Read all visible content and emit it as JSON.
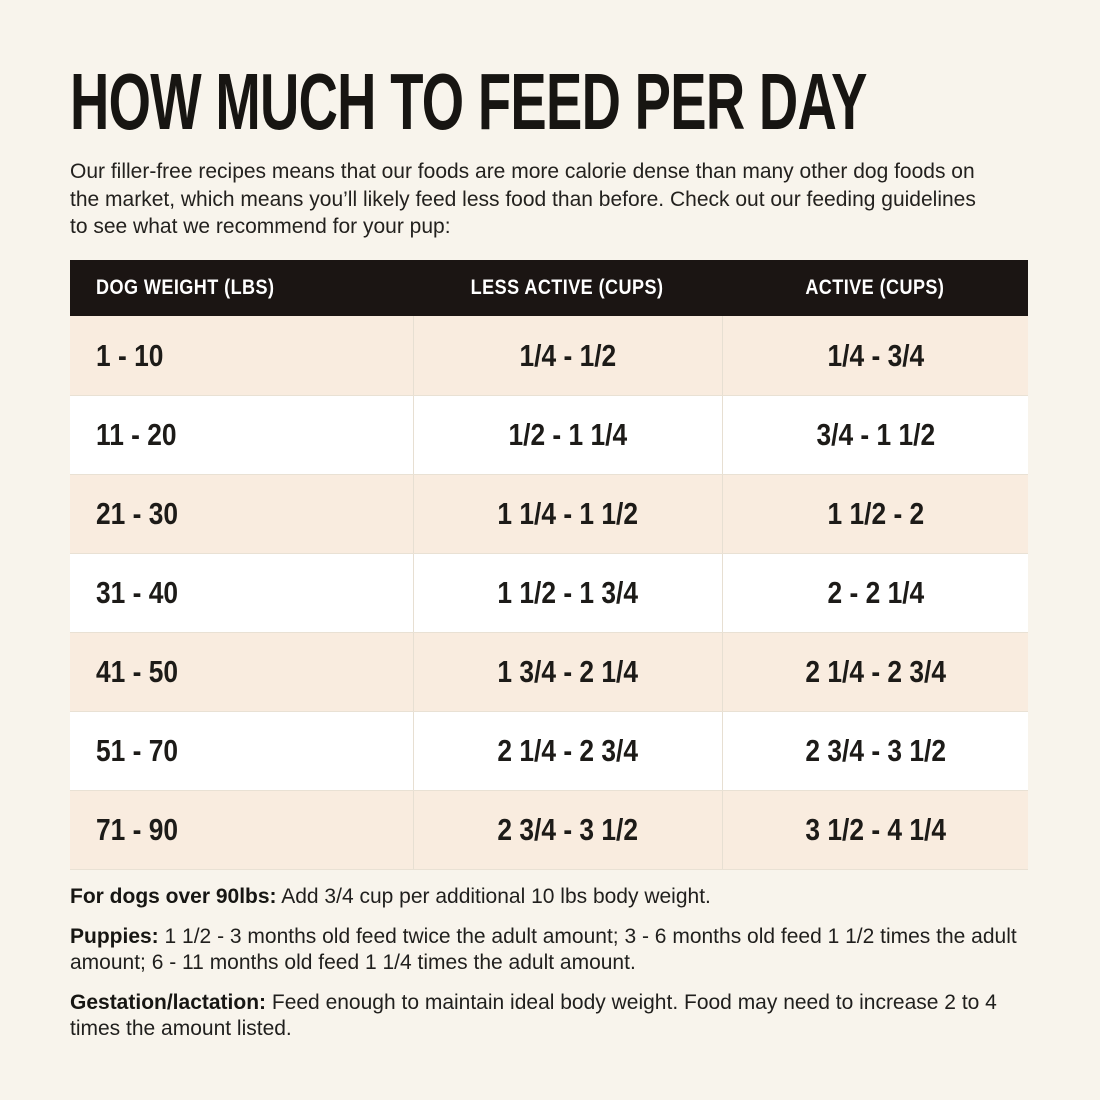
{
  "page": {
    "title": "HOW MUCH TO FEED PER DAY",
    "intro": "Our filler-free recipes means that our foods are more calorie dense than many other dog foods on the market, which means you’ll likely feed less food than before. Check out our feeding guidelines to see what we recommend for your pup:"
  },
  "chart_data": {
    "type": "table",
    "title": "HOW MUCH TO FEED PER DAY",
    "columns": [
      "DOG WEIGHT (LBS)",
      "LESS ACTIVE (CUPS)",
      "ACTIVE (CUPS)"
    ],
    "rows": [
      [
        "1 - 10",
        "1/4 - 1/2",
        "1/4 - 3/4"
      ],
      [
        "11 - 20",
        "1/2 - 1 1/4",
        "3/4 - 1 1/2"
      ],
      [
        "21 - 30",
        "1 1/4 - 1 1/2",
        "1 1/2 - 2"
      ],
      [
        "31 - 40",
        "1 1/2 - 1 3/4",
        "2 - 2 1/4"
      ],
      [
        "41 - 50",
        "1 3/4 - 2 1/4",
        "2 1/4 - 2 3/4"
      ],
      [
        "51 - 70",
        "2 1/4 - 2 3/4",
        "2 3/4 - 3 1/2"
      ],
      [
        "71 - 90",
        "2 3/4 - 3 1/2",
        "3 1/2 - 4 1/4"
      ]
    ],
    "layout_hints": {
      "header_style": "black bar, white uppercase condensed text",
      "row_striping": "cream on odd rows, white on even rows",
      "first_column_align": "left",
      "other_columns_align": "center"
    }
  },
  "notes": [
    {
      "label": "For dogs over 90lbs:",
      "text": "Add 3/4 cup per additional 10 lbs body weight."
    },
    {
      "label": "Puppies:",
      "text": "1 1/2 - 3 months old feed twice the adult amount; 3 - 6 months old feed 1 1/2 times the adult amount; 6 - 11 months old feed 1 1/4 times the adult amount."
    },
    {
      "label": "Gestation/lactation:",
      "text": "Feed enough to maintain ideal body weight. Food may need to increase 2 to 4 times the amount listed."
    }
  ],
  "colors": {
    "page_bg": "#f8f4ec",
    "header_bg": "#1b1513",
    "header_text": "#ffffff",
    "row_cream": "#f9ecdf",
    "row_white": "#ffffff",
    "divider": "#e7dfd2",
    "text": "#1d1c1a"
  }
}
